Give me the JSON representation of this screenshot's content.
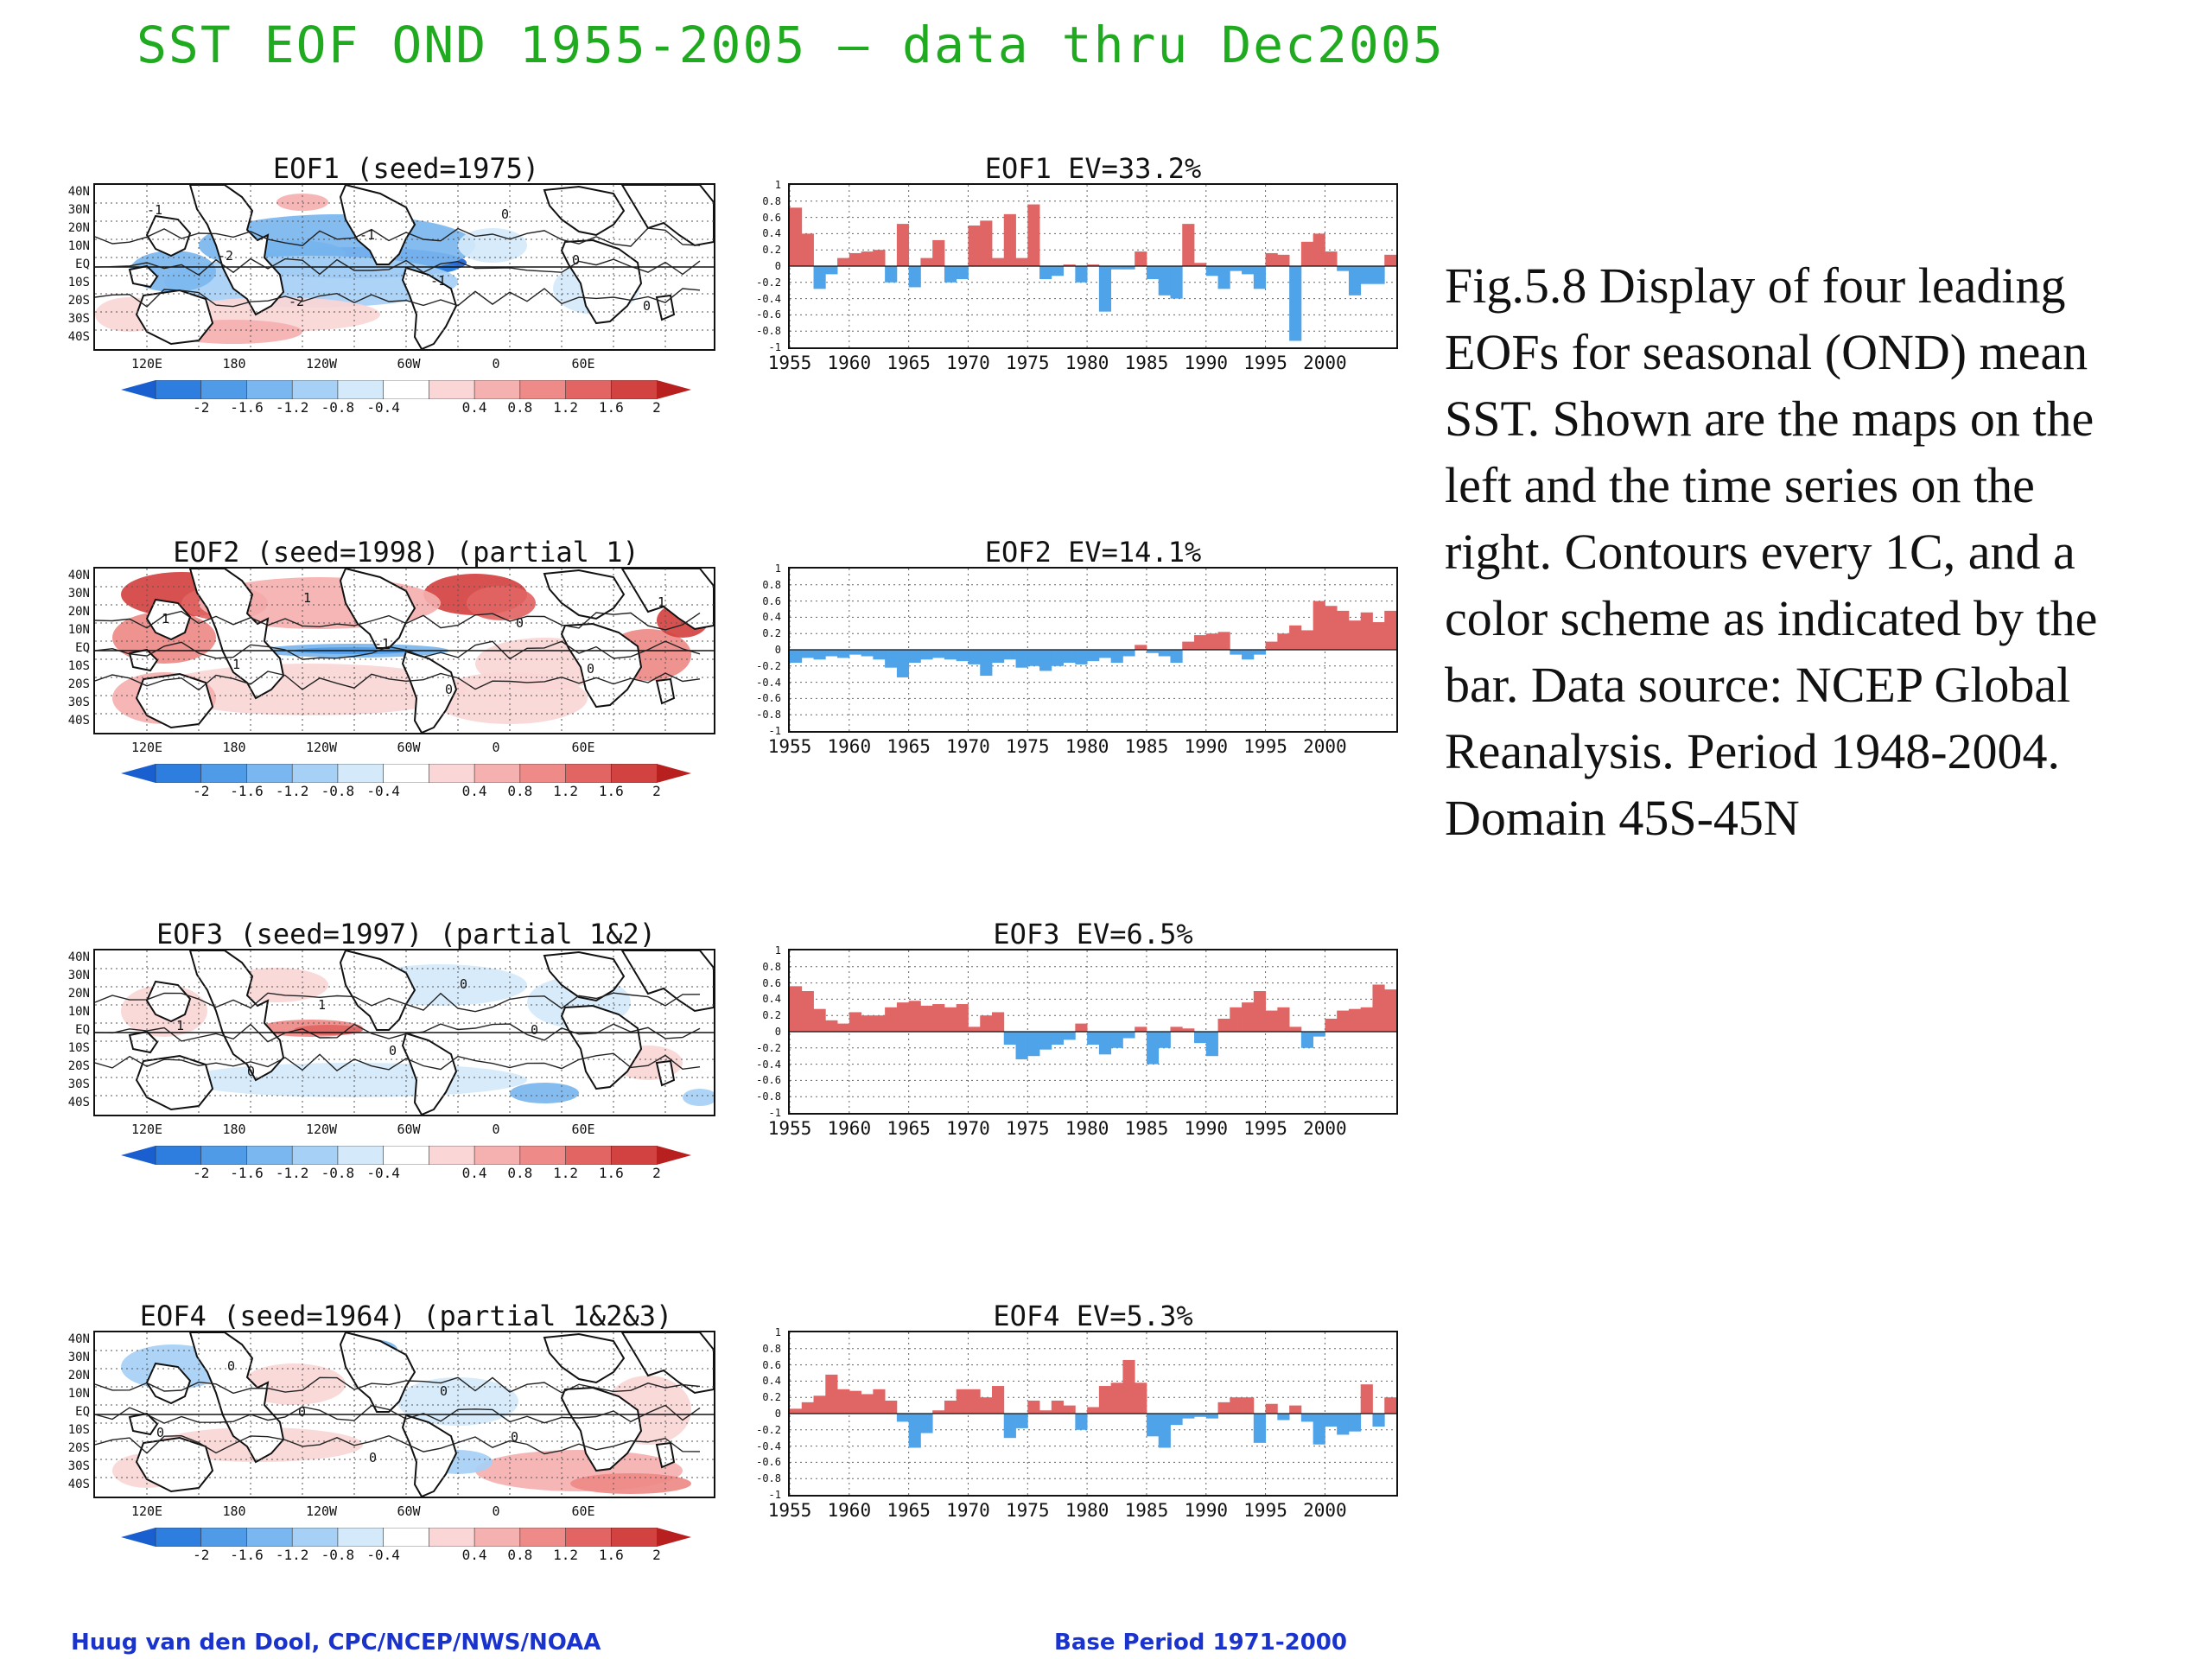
{
  "page_title": "SST EOF OND 1955-2005 — data thru Dec2005",
  "caption": "Fig.5.8 Display of  four leading EOFs for seasonal (OND) mean SST. Shown are the maps on the left and the time series on the right. Contours every 1C, and a color scheme as indicated by the bar. Data source: NCEP Global Reanalysis. Period 1948-2004. Domain 45S-45N",
  "footer": {
    "credit": "Huug van den Dool, CPC/NCEP/NWS/NOAA",
    "base_period": "Base Period 1971-2000"
  },
  "map_axes": {
    "lat_labels": [
      "40N",
      "30N",
      "20N",
      "10N",
      "EQ",
      "10S",
      "20S",
      "30S",
      "40S"
    ],
    "lon_labels": [
      "120E",
      "180",
      "120W",
      "60W",
      "0",
      "60E"
    ]
  },
  "colorbar": {
    "labels": [
      "-2",
      "-1.6",
      "-1.2",
      "-0.8",
      "-0.4",
      "0.4",
      "0.8",
      "1.2",
      "1.6",
      "2"
    ],
    "colors": [
      "#1a5fd0",
      "#2e7ee0",
      "#4f9be8",
      "#7ab6ef",
      "#a6d0f5",
      "#d4e9fa",
      "#ffffff",
      "#fad6d6",
      "#f5b0b0",
      "#ee8a88",
      "#e26563",
      "#d24240",
      "#b8201f"
    ]
  },
  "chart_data": [
    {
      "type": "map",
      "title": "EOF1   (seed=1975)",
      "contour_labels": [
        "-1",
        "-2",
        "-2",
        "-1",
        "-1",
        "0",
        "0",
        "0"
      ]
    },
    {
      "type": "bar",
      "title": "EOF1   EV=33.2%",
      "ylim": [
        -1,
        1
      ],
      "yticks": [
        "1",
        "0.8",
        "0.6",
        "0.4",
        "0.2",
        "0",
        "-0.2",
        "-0.4",
        "-0.6",
        "-0.8",
        "-1"
      ],
      "xticks": [
        "1955",
        "1960",
        "1965",
        "1970",
        "1975",
        "1980",
        "1985",
        "1990",
        "1995",
        "2000"
      ],
      "x_start": 1955,
      "values": [
        0.72,
        0.4,
        -0.28,
        -0.1,
        0.1,
        0.16,
        0.18,
        0.2,
        -0.2,
        0.52,
        -0.26,
        0.1,
        0.32,
        -0.2,
        -0.16,
        0.5,
        0.56,
        0.1,
        0.64,
        0.1,
        0.76,
        -0.16,
        -0.12,
        0.02,
        -0.2,
        0.02,
        -0.56,
        -0.04,
        -0.04,
        0.18,
        -0.16,
        -0.36,
        -0.4,
        0.52,
        0.04,
        -0.12,
        -0.28,
        -0.06,
        -0.1,
        -0.28,
        0.16,
        0.14,
        -0.92,
        0.3,
        0.4,
        0.18,
        -0.06,
        -0.36,
        -0.22,
        -0.22,
        0.14
      ]
    },
    {
      "type": "map",
      "title": "EOF2   (seed=1998) (partial 1)",
      "contour_labels": [
        "1",
        "1",
        "1",
        "-1",
        "0",
        "0",
        "0",
        "1"
      ]
    },
    {
      "type": "bar",
      "title": "EOF2   EV=14.1%",
      "ylim": [
        -1,
        1
      ],
      "yticks": [
        "1",
        "0.8",
        "0.6",
        "0.4",
        "0.2",
        "0",
        "-0.2",
        "-0.4",
        "-0.6",
        "-0.8",
        "-1"
      ],
      "xticks": [
        "1955",
        "1960",
        "1965",
        "1970",
        "1975",
        "1980",
        "1985",
        "1990",
        "1995",
        "2000"
      ],
      "x_start": 1955,
      "values": [
        -0.16,
        -0.1,
        -0.12,
        -0.08,
        -0.1,
        -0.06,
        -0.08,
        -0.12,
        -0.22,
        -0.34,
        -0.16,
        -0.12,
        -0.1,
        -0.12,
        -0.14,
        -0.18,
        -0.32,
        -0.16,
        -0.12,
        -0.22,
        -0.2,
        -0.26,
        -0.2,
        -0.16,
        -0.18,
        -0.14,
        -0.1,
        -0.16,
        -0.08,
        0.06,
        -0.04,
        -0.08,
        -0.16,
        0.1,
        0.18,
        0.2,
        0.22,
        -0.06,
        -0.12,
        -0.06,
        0.1,
        0.2,
        0.3,
        0.24,
        0.6,
        0.54,
        0.48,
        0.36,
        0.46,
        0.34,
        0.48
      ]
    },
    {
      "type": "map",
      "title": "EOF3   (seed=1997) (partial 1&2)",
      "contour_labels": [
        "1",
        "0",
        "1",
        "0",
        "0",
        "0"
      ]
    },
    {
      "type": "bar",
      "title": "EOF3   EV=6.5%",
      "ylim": [
        -1,
        1
      ],
      "yticks": [
        "1",
        "0.8",
        "0.6",
        "0.4",
        "0.2",
        "0",
        "-0.2",
        "-0.4",
        "-0.6",
        "-0.8",
        "-1"
      ],
      "xticks": [
        "1955",
        "1960",
        "1965",
        "1970",
        "1975",
        "1980",
        "1985",
        "1990",
        "1995",
        "2000"
      ],
      "x_start": 1955,
      "values": [
        0.56,
        0.5,
        0.28,
        0.14,
        0.1,
        0.24,
        0.2,
        0.2,
        0.3,
        0.36,
        0.38,
        0.32,
        0.34,
        0.3,
        0.34,
        0.06,
        0.2,
        0.24,
        -0.16,
        -0.34,
        -0.3,
        -0.22,
        -0.16,
        -0.1,
        0.1,
        -0.16,
        -0.28,
        -0.2,
        -0.08,
        0.06,
        -0.4,
        -0.2,
        0.06,
        0.04,
        -0.14,
        -0.3,
        0.16,
        0.3,
        0.36,
        0.5,
        0.26,
        0.3,
        0.06,
        -0.2,
        -0.06,
        0.16,
        0.26,
        0.28,
        0.3,
        0.58,
        0.52
      ]
    },
    {
      "type": "map",
      "title": "EOF4   (seed=1964) (partial 1&2&3)",
      "contour_labels": [
        "0",
        "0",
        "0",
        "0",
        "0",
        "0"
      ]
    },
    {
      "type": "bar",
      "title": "EOF4   EV=5.3%",
      "ylim": [
        -1,
        1
      ],
      "yticks": [
        "1",
        "0.8",
        "0.6",
        "0.4",
        "0.2",
        "0",
        "-0.2",
        "-0.4",
        "-0.6",
        "-0.8",
        "-1"
      ],
      "xticks": [
        "1955",
        "1960",
        "1965",
        "1970",
        "1975",
        "1980",
        "1985",
        "1990",
        "1995",
        "2000"
      ],
      "x_start": 1955,
      "values": [
        0.06,
        0.14,
        0.22,
        0.48,
        0.3,
        0.28,
        0.24,
        0.3,
        0.16,
        -0.1,
        -0.42,
        -0.24,
        0.04,
        0.16,
        0.3,
        0.3,
        0.2,
        0.34,
        -0.3,
        -0.18,
        0.16,
        0.04,
        0.16,
        0.1,
        -0.2,
        0.08,
        0.34,
        0.38,
        0.66,
        0.38,
        -0.28,
        -0.42,
        -0.14,
        -0.06,
        -0.04,
        -0.06,
        0.14,
        0.2,
        0.2,
        -0.36,
        0.12,
        -0.08,
        0.1,
        -0.1,
        -0.38,
        -0.16,
        -0.26,
        -0.22,
        0.36,
        -0.16,
        0.2
      ]
    }
  ]
}
